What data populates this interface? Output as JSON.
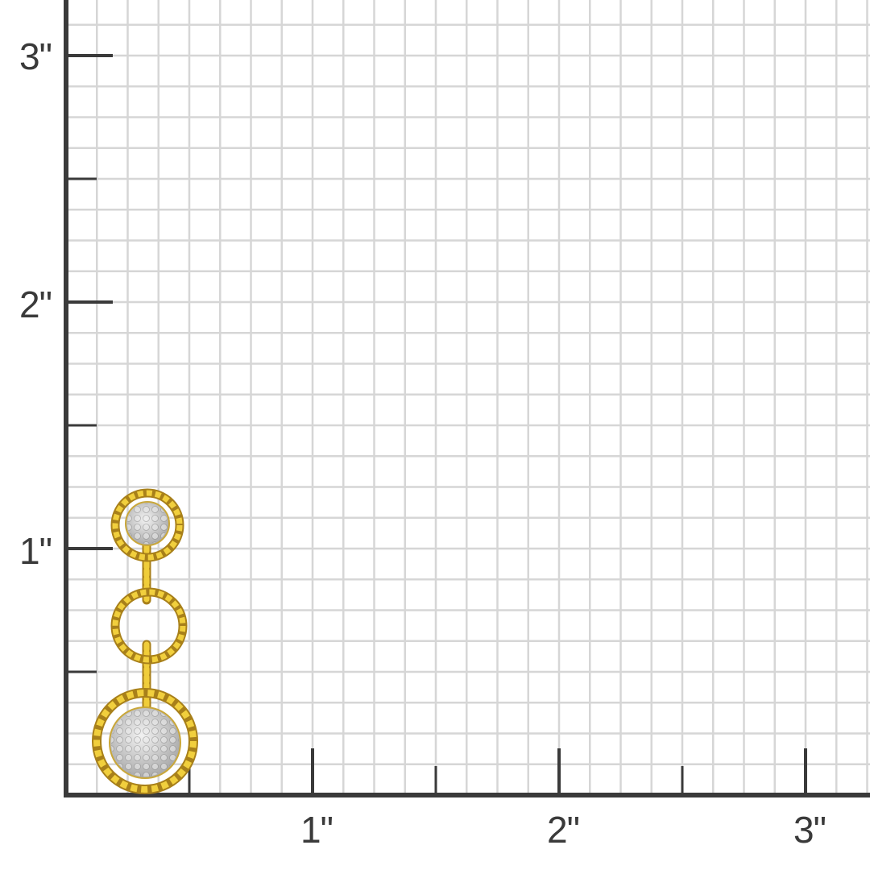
{
  "scale": {
    "unit": "inch",
    "y_labels": [
      "1\"",
      "2\"",
      "3\""
    ],
    "x_labels": [
      "1\"",
      "2\"",
      "3\""
    ],
    "grid_subdivisions_per_inch": 8
  },
  "colors": {
    "axis": "#3a3a3a",
    "grid": "#d6d6d6",
    "gold": "#e8c22e",
    "gold_dark": "#a8801a",
    "pave": "#d9d9d9"
  },
  "product": {
    "type": "three-tier twisted rope circle drop earring with pave discs"
  }
}
